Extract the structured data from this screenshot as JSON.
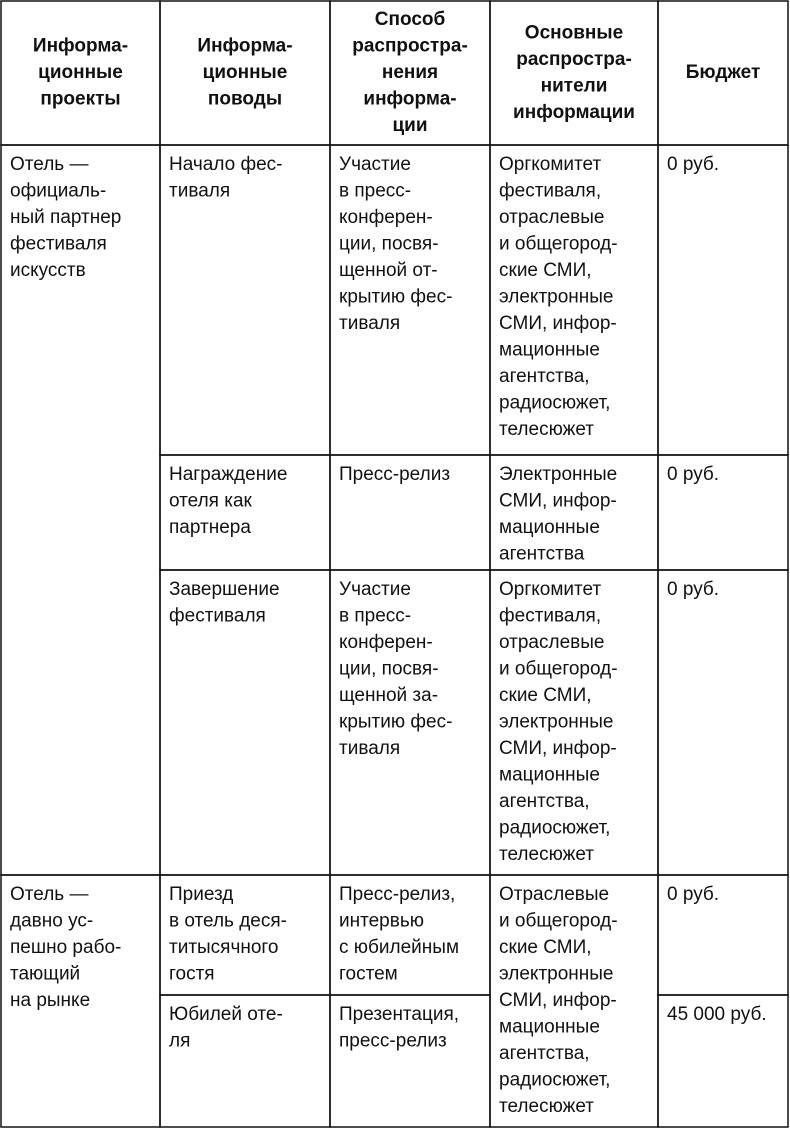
{
  "header": [
    {
      "lines": [
        "Информа-",
        "ционные",
        "проекты"
      ]
    },
    {
      "lines": [
        "Информа-",
        "ционные",
        "поводы"
      ]
    },
    {
      "lines": [
        "Способ",
        "распростра-",
        "нения",
        "информа-",
        "ции"
      ]
    },
    {
      "lines": [
        "Основные",
        "распростра-",
        "нители",
        "информации"
      ]
    },
    {
      "lines": [
        "Бюджет"
      ]
    }
  ],
  "cells": [
    {
      "lines": [
        "Отель —",
        "официаль-",
        "ный партнер",
        "фестиваля",
        "искусств"
      ]
    },
    {
      "lines": [
        "Начало фес-",
        "тиваля"
      ]
    },
    {
      "lines": [
        "Участие",
        "в пресс-",
        "конферен-",
        "ции, посвя-",
        "щенной от-",
        "крытию фес-",
        "тиваля"
      ]
    },
    {
      "lines": [
        "Оргкомитет",
        "фестиваля,",
        "отраслевые",
        "и общегород-",
        "ские СМИ,",
        "электронные",
        "СМИ, инфор-",
        "мационные",
        "агентства,",
        "радиосюжет,",
        "телесюжет"
      ]
    },
    {
      "lines": [
        "0 руб."
      ]
    },
    {
      "lines": [
        "Награждение",
        "отеля как",
        "партнера"
      ]
    },
    {
      "lines": [
        "Пресс-релиз"
      ]
    },
    {
      "lines": [
        "Электронные",
        "СМИ, инфор-",
        "мационные",
        "агентства"
      ]
    },
    {
      "lines": [
        "0 руб."
      ]
    },
    {
      "lines": [
        "Завершение",
        "фестиваля"
      ]
    },
    {
      "lines": [
        "Участие",
        "в пресс-",
        "конферен-",
        "ции, посвя-",
        "щенной за-",
        "крытию фес-",
        "тиваля"
      ]
    },
    {
      "lines": [
        "Оргкомитет",
        "фестиваля,",
        "отраслевые",
        "и общегород-",
        "ские СМИ,",
        "электронные",
        "СМИ, инфор-",
        "мационные",
        "агентства,",
        "радиосюжет,",
        "телесюжет"
      ]
    },
    {
      "lines": [
        "0 руб."
      ]
    },
    {
      "lines": [
        "Отель —",
        "давно ус-",
        "пешно рабо-",
        "тающий",
        "на рынке"
      ]
    },
    {
      "lines": [
        "Приезд",
        "в отель деся-",
        "титысячного",
        "гостя"
      ]
    },
    {
      "lines": [
        "Пресс-релиз,",
        "интервью",
        "с юбилейным",
        "гостем"
      ]
    },
    {
      "lines": [
        "Отраслевые",
        "и общегород-",
        "ские СМИ,",
        "электронные",
        "СМИ, инфор-",
        "мационные",
        "агентства,",
        "радиосюжет,",
        "телесюжет"
      ]
    },
    {
      "lines": [
        "0 руб."
      ]
    },
    {
      "lines": [
        "Юбилей оте-",
        "ля"
      ]
    },
    {
      "lines": [
        "Презентация,",
        "пресс-релиз"
      ]
    },
    {
      "lines": [
        "45 000 руб."
      ]
    }
  ]
}
